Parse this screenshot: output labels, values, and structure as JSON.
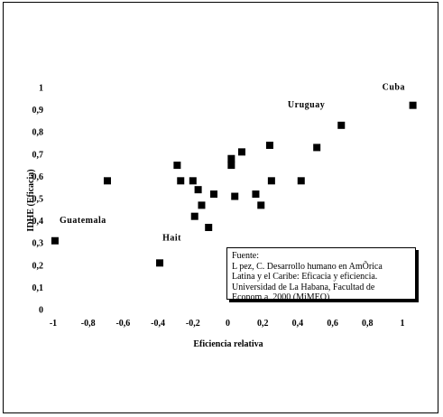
{
  "chart_data": {
    "type": "scatter",
    "xlabel": "Eficiencia relativa",
    "ylabel": "IDHE (Eficacia)",
    "xlim": [
      -1,
      1.1
    ],
    "ylim": [
      0,
      1
    ],
    "x_ticks": [
      "-1",
      "-0,8",
      "-0,6",
      "-0,4",
      "-0,2",
      "0",
      "0,2",
      "0,4",
      "0,6",
      "0,8",
      "1"
    ],
    "y_ticks": [
      "0",
      "0,1",
      "0,2",
      "0,3",
      "0,4",
      "0,5",
      "0,6",
      "0,7",
      "0,8",
      "0,9",
      "1"
    ],
    "grid": false,
    "points": [
      {
        "x": -0.99,
        "y": 0.31
      },
      {
        "x": -0.69,
        "y": 0.58
      },
      {
        "x": -0.39,
        "y": 0.21
      },
      {
        "x": -0.29,
        "y": 0.65
      },
      {
        "x": -0.27,
        "y": 0.58
      },
      {
        "x": -0.2,
        "y": 0.58
      },
      {
        "x": -0.17,
        "y": 0.54
      },
      {
        "x": -0.15,
        "y": 0.47
      },
      {
        "x": -0.19,
        "y": 0.42
      },
      {
        "x": -0.11,
        "y": 0.37
      },
      {
        "x": -0.08,
        "y": 0.52
      },
      {
        "x": 0.02,
        "y": 0.68
      },
      {
        "x": 0.02,
        "y": 0.65
      },
      {
        "x": 0.04,
        "y": 0.51
      },
      {
        "x": 0.08,
        "y": 0.71
      },
      {
        "x": 0.16,
        "y": 0.52
      },
      {
        "x": 0.19,
        "y": 0.47
      },
      {
        "x": 0.24,
        "y": 0.74
      },
      {
        "x": 0.25,
        "y": 0.58
      },
      {
        "x": 0.42,
        "y": 0.58
      },
      {
        "x": 0.51,
        "y": 0.73
      },
      {
        "x": 0.65,
        "y": 0.83
      },
      {
        "x": 1.06,
        "y": 0.92
      }
    ],
    "annotations": [
      {
        "text": "Cuba",
        "x": 0.95,
        "y": 0.99
      },
      {
        "text": "Uruguay",
        "x": 0.45,
        "y": 0.91
      },
      {
        "text": "Guatemala",
        "x": -0.83,
        "y": 0.39
      },
      {
        "text": "Hait",
        "x": -0.32,
        "y": 0.31
      }
    ]
  },
  "note": {
    "lines": [
      "Fuente:",
      "L  pez, C. Desarrollo humano en AmÕrica",
      "Latina y el Caribe: Eficacia y eficiencia.",
      "Universidad de La Habana, Facultad de",
      "Econom  a, 2000 (MiMEO)"
    ]
  }
}
